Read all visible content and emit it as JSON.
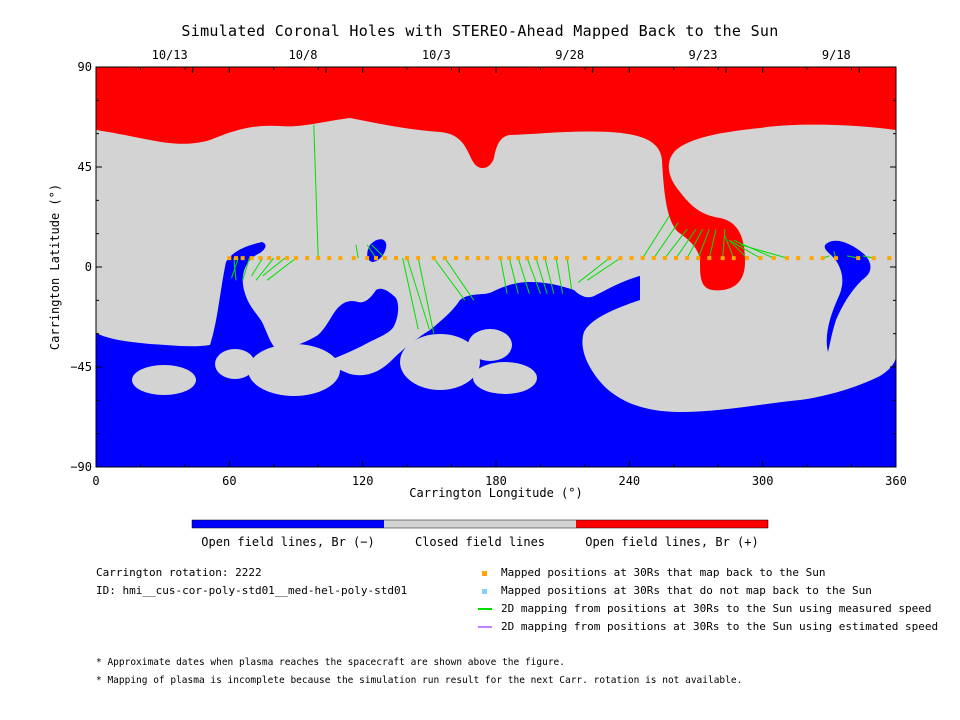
{
  "figure": {
    "title": "Simulated Coronal Holes with STEREO-Ahead Mapped Back to the Sun"
  },
  "chart_data": {
    "type": "map",
    "xlabel": "Carrington Longitude (°)",
    "ylabel": "Carrington Latitude (°)",
    "xlim": [
      0,
      360
    ],
    "ylim": [
      -90,
      90
    ],
    "x_ticks": [
      0,
      60,
      120,
      180,
      240,
      300,
      360
    ],
    "y_ticks": [
      -90,
      -45,
      0,
      45,
      90
    ],
    "top_axis_dates": [
      {
        "label": "10/13",
        "lon": 30
      },
      {
        "label": "10/8",
        "lon": 90
      },
      {
        "label": "10/3",
        "lon": 150
      },
      {
        "label": "9/28",
        "lon": 210
      },
      {
        "label": "9/23",
        "lon": 270
      },
      {
        "label": "9/18",
        "lon": 330
      }
    ],
    "colorbar": [
      {
        "label": "Open field lines, Br (−)",
        "color": "#0000ff"
      },
      {
        "label": "Closed field lines",
        "color": "#d3d3d3"
      },
      {
        "label": "Open field lines, Br (+)",
        "color": "#ff0000"
      }
    ],
    "mapped_positions_30Rs": {
      "lat": 4,
      "lons": [
        60,
        63,
        66,
        70,
        74,
        78,
        82,
        86,
        90,
        95,
        100,
        105,
        110,
        116,
        122,
        126,
        130,
        135,
        140,
        145,
        152,
        157,
        162,
        167,
        172,
        176,
        182,
        186,
        190,
        194,
        198,
        202,
        207,
        212,
        220,
        226,
        231,
        236,
        241,
        246,
        251,
        256,
        261,
        266,
        271,
        276,
        282,
        287,
        293,
        299,
        305,
        311,
        316,
        322,
        327,
        333,
        343,
        350,
        357
      ]
    },
    "mapping_lines": [
      {
        "from": [
          62,
          4
        ],
        "to": [
          63,
          -6
        ]
      },
      {
        "from": [
          64,
          4
        ],
        "to": [
          61,
          -5
        ]
      },
      {
        "from": [
          69,
          4
        ],
        "to": [
          66,
          -6
        ]
      },
      {
        "from": [
          75,
          4
        ],
        "to": [
          70,
          -4
        ]
      },
      {
        "from": [
          80,
          4
        ],
        "to": [
          72,
          -6
        ]
      },
      {
        "from": [
          85,
          4
        ],
        "to": [
          75,
          -4
        ]
      },
      {
        "from": [
          90,
          4
        ],
        "to": [
          77,
          -6
        ]
      },
      {
        "from": [
          100,
          4
        ],
        "to": [
          98,
          64
        ]
      },
      {
        "from": [
          118,
          4
        ],
        "to": [
          117,
          10
        ]
      },
      {
        "from": [
          126,
          4
        ],
        "to": [
          122,
          10
        ]
      },
      {
        "from": [
          130,
          4
        ],
        "to": [
          124,
          10
        ]
      },
      {
        "from": [
          138,
          4
        ],
        "to": [
          145,
          -28
        ]
      },
      {
        "from": [
          140,
          4
        ],
        "to": [
          150,
          -28
        ]
      },
      {
        "from": [
          145,
          4
        ],
        "to": [
          152,
          -30
        ]
      },
      {
        "from": [
          152,
          4
        ],
        "to": [
          166,
          -15
        ]
      },
      {
        "from": [
          157,
          4
        ],
        "to": [
          170,
          -15
        ]
      },
      {
        "from": [
          182,
          4
        ],
        "to": [
          185,
          -12
        ]
      },
      {
        "from": [
          186,
          4
        ],
        "to": [
          190,
          -12
        ]
      },
      {
        "from": [
          190,
          4
        ],
        "to": [
          195,
          -12
        ]
      },
      {
        "from": [
          194,
          4
        ],
        "to": [
          200,
          -12
        ]
      },
      {
        "from": [
          198,
          4
        ],
        "to": [
          203,
          -12
        ]
      },
      {
        "from": [
          202,
          4
        ],
        "to": [
          206,
          -12
        ]
      },
      {
        "from": [
          207,
          4
        ],
        "to": [
          210,
          -12
        ]
      },
      {
        "from": [
          212,
          4
        ],
        "to": [
          214,
          -10
        ]
      },
      {
        "from": [
          231,
          4
        ],
        "to": [
          217,
          -7
        ]
      },
      {
        "from": [
          236,
          4
        ],
        "to": [
          221,
          -6
        ]
      },
      {
        "from": [
          246,
          4
        ],
        "to": [
          258,
          23
        ]
      },
      {
        "from": [
          251,
          4
        ],
        "to": [
          262,
          20
        ]
      },
      {
        "from": [
          256,
          4
        ],
        "to": [
          266,
          17
        ]
      },
      {
        "from": [
          261,
          4
        ],
        "to": [
          270,
          17
        ]
      },
      {
        "from": [
          266,
          4
        ],
        "to": [
          273,
          17
        ]
      },
      {
        "from": [
          271,
          4
        ],
        "to": [
          276,
          17
        ]
      },
      {
        "from": [
          276,
          4
        ],
        "to": [
          279,
          17
        ]
      },
      {
        "from": [
          282,
          4
        ],
        "to": [
          283,
          17
        ]
      },
      {
        "from": [
          287,
          4
        ],
        "to": [
          283,
          14
        ]
      },
      {
        "from": [
          293,
          4
        ],
        "to": [
          285,
          12
        ]
      },
      {
        "from": [
          299,
          4
        ],
        "to": [
          285,
          12
        ]
      },
      {
        "from": [
          305,
          4
        ],
        "to": [
          287,
          12
        ]
      },
      {
        "from": [
          311,
          4
        ],
        "to": [
          290,
          10
        ]
      },
      {
        "from": [
          327,
          4
        ],
        "to": [
          330,
          5
        ]
      },
      {
        "from": [
          333,
          4
        ],
        "to": [
          332,
          7
        ]
      },
      {
        "from": [
          343,
          4
        ],
        "to": [
          338,
          5
        ]
      },
      {
        "from": [
          350,
          4
        ],
        "to": [
          345,
          5
        ]
      }
    ]
  },
  "info": {
    "rotation": "Carrington rotation: 2222",
    "id": "ID: hmi__cus-cor-poly-std01__med-hel-poly-std01"
  },
  "legend": [
    {
      "label": "Mapped positions at 30Rs that map back to the Sun",
      "color": "#ffa500",
      "kind": "square"
    },
    {
      "label": "Mapped positions at 30Rs that do not map back to the Sun",
      "color": "#87cefa",
      "kind": "square"
    },
    {
      "label": "2D mapping from positions at 30Rs to the Sun using measured speed",
      "color": "#00e000",
      "kind": "line"
    },
    {
      "label": "2D mapping from positions at 30Rs to the Sun using estimated speed",
      "color": "#c080ff",
      "kind": "line"
    }
  ],
  "footnotes": [
    "* Approximate dates when plasma reaches the spacecraft are shown above the figure.",
    "* Mapping of plasma is incomplete because the simulation run result for the next Carr. rotation is not available."
  ]
}
